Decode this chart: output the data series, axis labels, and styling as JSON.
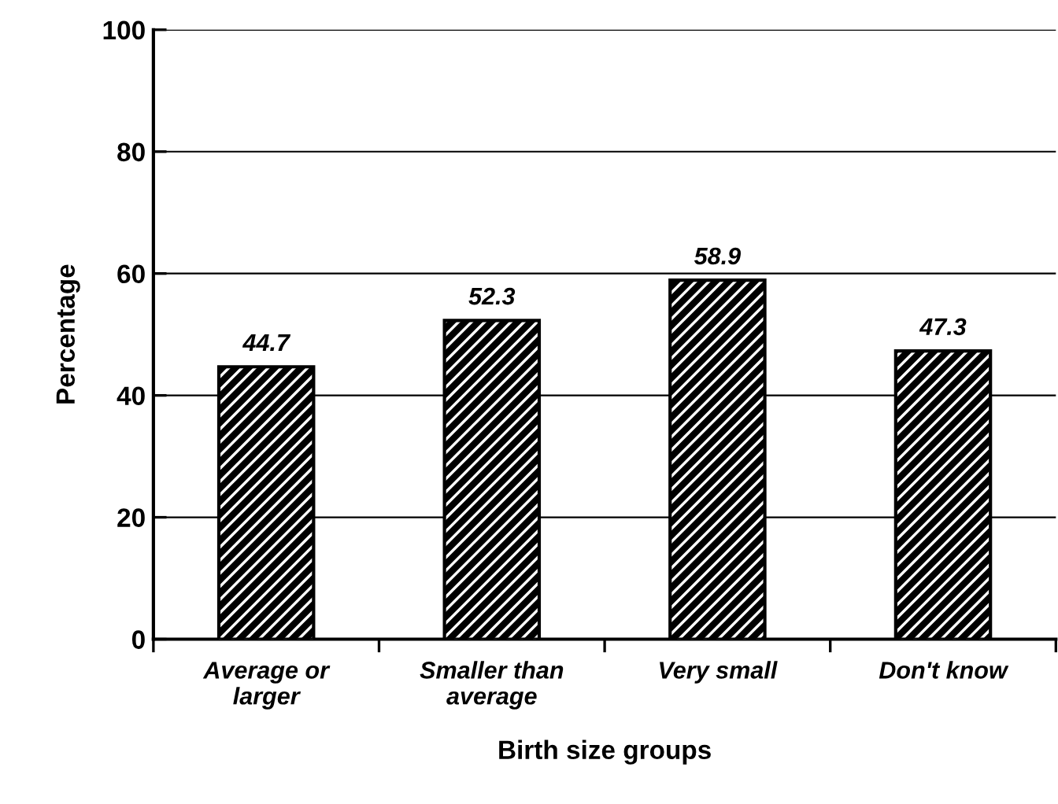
{
  "chart_data": {
    "type": "bar",
    "xlabel": "Birth size groups",
    "ylabel": "Percentage",
    "categories": [
      "Average or\nlarger",
      "Smaller than\naverage",
      "Very small",
      "Don't know"
    ],
    "values": [
      44.7,
      52.3,
      58.9,
      47.3
    ],
    "color": "#000000",
    "data_labels": true,
    "ylim": [
      0,
      100
    ],
    "yticks": [
      0,
      20,
      40,
      60,
      80,
      100
    ],
    "grid": "y",
    "legend": false
  }
}
